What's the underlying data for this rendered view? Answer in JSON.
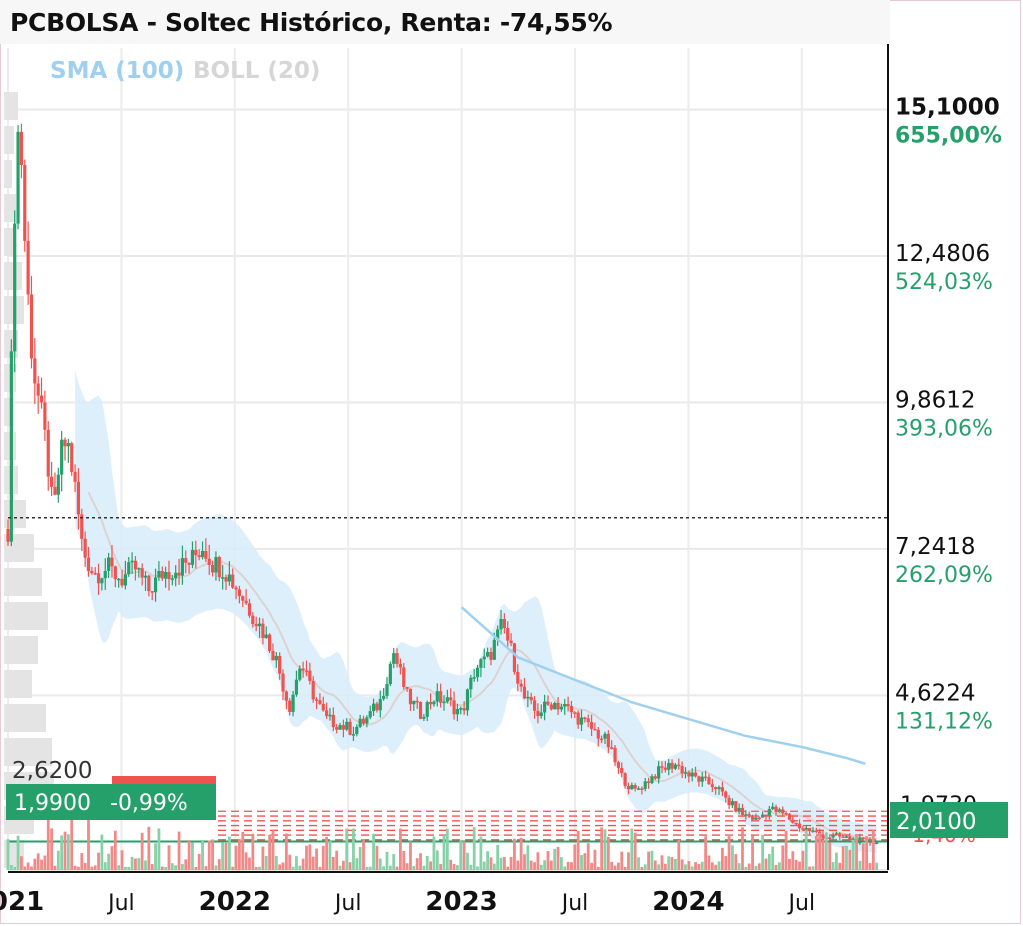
{
  "chart_data": {
    "type": "candlestick",
    "title": "PCBOLSA - Soltec Histórico, Renta: -74,55%",
    "indicators": [
      {
        "label": "SMA (100)",
        "color": "#9fd0ef"
      },
      {
        "label": "BOLL (20)",
        "color": "#d6d6d6"
      }
    ],
    "y_ticks": [
      {
        "price": "15,1000",
        "pct": "655,00%",
        "value": 15.1,
        "emph": true
      },
      {
        "price": "12,4806",
        "pct": "524,03%",
        "value": 12.4806
      },
      {
        "price": "9,8612",
        "pct": "393,06%",
        "value": 9.8612
      },
      {
        "price": "7,2418",
        "pct": "262,09%",
        "value": 7.2418
      },
      {
        "price": "4,6224",
        "pct": "131,12%",
        "value": 4.6224
      }
    ],
    "x_ticks": [
      {
        "label": "2021",
        "year": true,
        "t": 2021.0
      },
      {
        "label": "Jul",
        "t": 2021.5
      },
      {
        "label": "2022",
        "year": true,
        "t": 2022.0
      },
      {
        "label": "Jul",
        "t": 2022.5
      },
      {
        "label": "2023",
        "year": true,
        "t": 2023.0
      },
      {
        "label": "Jul",
        "t": 2023.5
      },
      {
        "label": "2024",
        "year": true,
        "t": 2024.0
      },
      {
        "label": "Jul",
        "t": 2024.5
      }
    ],
    "ylim": [
      1.5,
      16.2
    ],
    "xlim": [
      2021.0,
      2024.88
    ],
    "reference_line": 7.8,
    "current_price_label": "2,0100",
    "current_price": 2.01,
    "last_close_label": "1,9900",
    "last_change_label": "-0,99%",
    "last_close": 1.99,
    "level_label": "2,6200",
    "level": 2.62,
    "hidden_labels": [
      "1,9730",
      "-1,40%"
    ],
    "colors": {
      "up": "#26a06b",
      "down": "#ef5350",
      "accent": "#26a06b",
      "pct": "#26a06b",
      "band": "#d8ecfb",
      "sma": "#9fd0ef",
      "boll_mid": "#dcd3cf"
    },
    "series_close": [
      {
        "t": 2021.0,
        "v": 7.6
      },
      {
        "t": 2021.03,
        "v": 13.5
      },
      {
        "t": 2021.05,
        "v": 15.1
      },
      {
        "t": 2021.08,
        "v": 12.2
      },
      {
        "t": 2021.11,
        "v": 10.5
      },
      {
        "t": 2021.14,
        "v": 9.8
      },
      {
        "t": 2021.17,
        "v": 9.0
      },
      {
        "t": 2021.2,
        "v": 7.8
      },
      {
        "t": 2021.23,
        "v": 8.9
      },
      {
        "t": 2021.26,
        "v": 9.2
      },
      {
        "t": 2021.29,
        "v": 8.5
      },
      {
        "t": 2021.33,
        "v": 7.2
      },
      {
        "t": 2021.38,
        "v": 6.8
      },
      {
        "t": 2021.44,
        "v": 6.9
      },
      {
        "t": 2021.5,
        "v": 6.7
      },
      {
        "t": 2021.56,
        "v": 6.9
      },
      {
        "t": 2021.62,
        "v": 6.5
      },
      {
        "t": 2021.68,
        "v": 6.8
      },
      {
        "t": 2021.74,
        "v": 6.9
      },
      {
        "t": 2021.8,
        "v": 7.0
      },
      {
        "t": 2021.86,
        "v": 7.3
      },
      {
        "t": 2021.9,
        "v": 7.0
      },
      {
        "t": 2021.95,
        "v": 6.9
      },
      {
        "t": 2022.0,
        "v": 6.6
      },
      {
        "t": 2022.06,
        "v": 6.2
      },
      {
        "t": 2022.12,
        "v": 5.8
      },
      {
        "t": 2022.18,
        "v": 5.3
      },
      {
        "t": 2022.24,
        "v": 4.4
      },
      {
        "t": 2022.29,
        "v": 5.2
      },
      {
        "t": 2022.34,
        "v": 4.7
      },
      {
        "t": 2022.4,
        "v": 4.2
      },
      {
        "t": 2022.46,
        "v": 4.1
      },
      {
        "t": 2022.52,
        "v": 4.0
      },
      {
        "t": 2022.58,
        "v": 4.2
      },
      {
        "t": 2022.64,
        "v": 4.5
      },
      {
        "t": 2022.7,
        "v": 5.4
      },
      {
        "t": 2022.76,
        "v": 4.6
      },
      {
        "t": 2022.82,
        "v": 4.3
      },
      {
        "t": 2022.88,
        "v": 4.6
      },
      {
        "t": 2022.94,
        "v": 4.5
      },
      {
        "t": 2023.0,
        "v": 4.3
      },
      {
        "t": 2023.06,
        "v": 5.1
      },
      {
        "t": 2023.12,
        "v": 5.3
      },
      {
        "t": 2023.18,
        "v": 5.9
      },
      {
        "t": 2023.22,
        "v": 5.4
      },
      {
        "t": 2023.27,
        "v": 4.6
      },
      {
        "t": 2023.33,
        "v": 4.3
      },
      {
        "t": 2023.4,
        "v": 4.5
      },
      {
        "t": 2023.46,
        "v": 4.4
      },
      {
        "t": 2023.52,
        "v": 4.2
      },
      {
        "t": 2023.58,
        "v": 4.0
      },
      {
        "t": 2023.64,
        "v": 3.8
      },
      {
        "t": 2023.7,
        "v": 3.2
      },
      {
        "t": 2023.76,
        "v": 2.9
      },
      {
        "t": 2023.82,
        "v": 3.1
      },
      {
        "t": 2023.88,
        "v": 3.3
      },
      {
        "t": 2023.94,
        "v": 3.4
      },
      {
        "t": 2024.0,
        "v": 3.2
      },
      {
        "t": 2024.06,
        "v": 3.1
      },
      {
        "t": 2024.12,
        "v": 3.0
      },
      {
        "t": 2024.18,
        "v": 2.7
      },
      {
        "t": 2024.24,
        "v": 2.5
      },
      {
        "t": 2024.3,
        "v": 2.4
      },
      {
        "t": 2024.36,
        "v": 2.6
      },
      {
        "t": 2024.42,
        "v": 2.5
      },
      {
        "t": 2024.48,
        "v": 2.3
      },
      {
        "t": 2024.54,
        "v": 2.2
      },
      {
        "t": 2024.6,
        "v": 2.1
      },
      {
        "t": 2024.66,
        "v": 2.1
      },
      {
        "t": 2024.72,
        "v": 2.05
      },
      {
        "t": 2024.78,
        "v": 2.0
      },
      {
        "t": 2024.82,
        "v": 2.01
      }
    ],
    "sma": [
      {
        "t": 2023.0,
        "v": 6.2
      },
      {
        "t": 2023.25,
        "v": 5.3
      },
      {
        "t": 2023.5,
        "v": 4.9
      },
      {
        "t": 2023.75,
        "v": 4.5
      },
      {
        "t": 2024.0,
        "v": 4.2
      },
      {
        "t": 2024.25,
        "v": 3.9
      },
      {
        "t": 2024.5,
        "v": 3.7
      },
      {
        "t": 2024.7,
        "v": 3.5
      },
      {
        "t": 2024.78,
        "v": 3.4
      }
    ]
  }
}
